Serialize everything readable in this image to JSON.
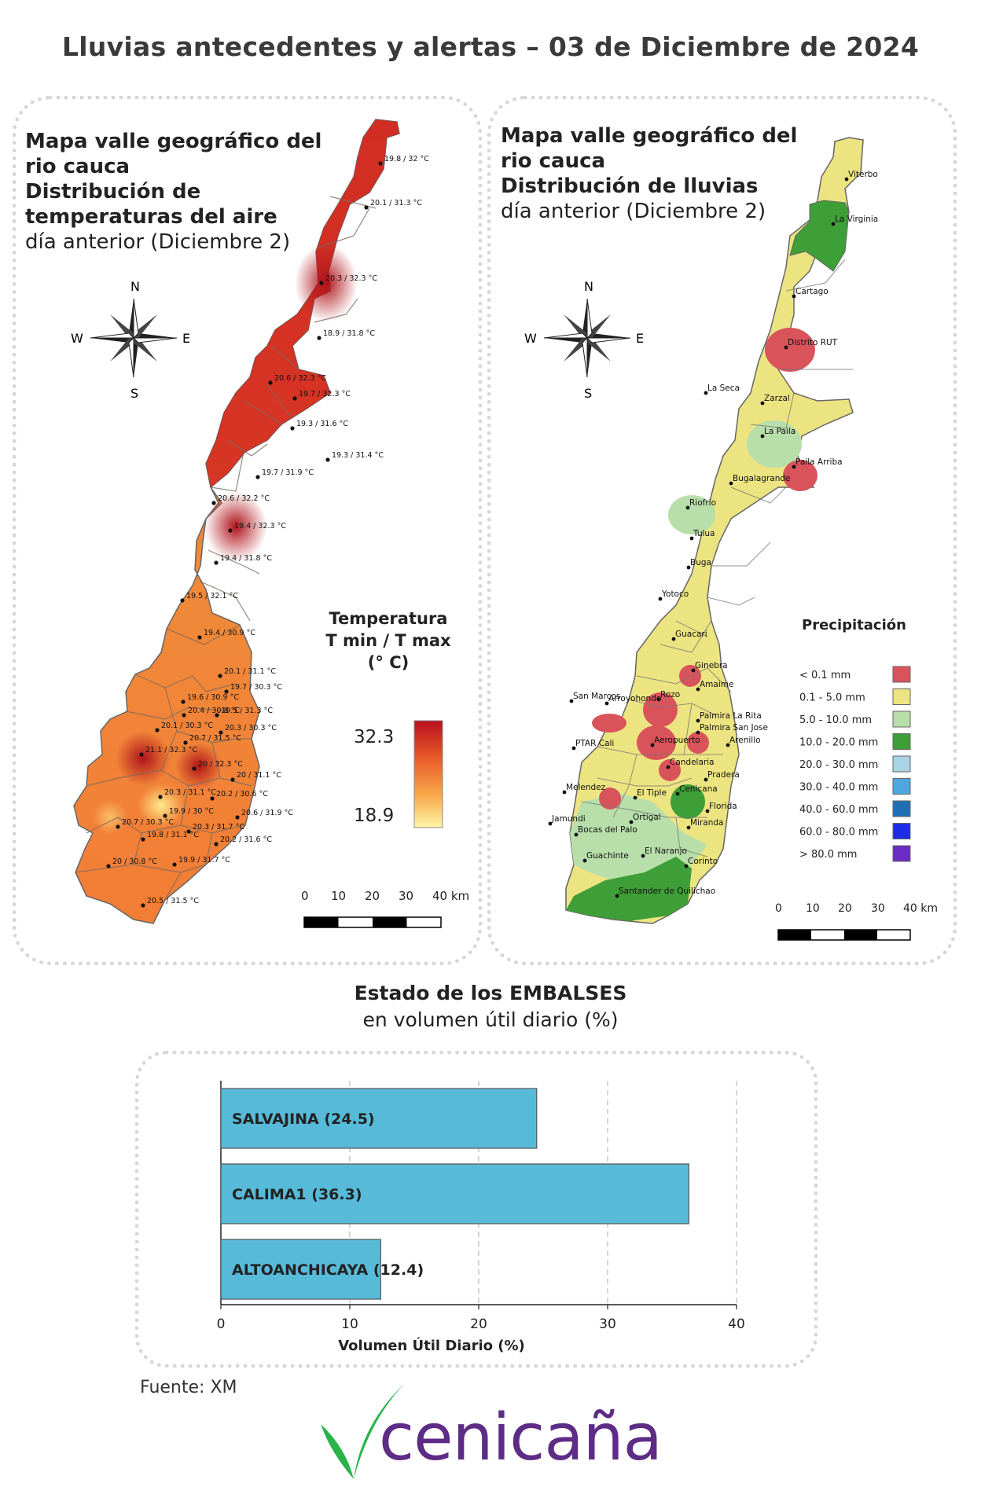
{
  "header": {
    "title": "Lluvias antecedentes y alertas – 03 de Diciembre de 2024"
  },
  "temperature_map": {
    "title_bold": [
      "Mapa valle geográfico del",
      "rio cauca",
      "Distribución de",
      "temperaturas del aire"
    ],
    "title_normal": "día anterior (Diciembre 2)",
    "compass": {
      "n": "N",
      "s": "S",
      "e": "E",
      "w": "W"
    },
    "legend": {
      "title_line1": "Temperatura",
      "title_line2": "T min / T max",
      "title_line3": "(° C)",
      "max": "32.3",
      "min": "18.9",
      "color_max": "#b80f1e",
      "color_min": "#fff6a8"
    },
    "scale": {
      "labels": [
        "0",
        "10",
        "20",
        "30",
        "40 km"
      ]
    },
    "stations": [
      {
        "label": "19.8 / 32 °C"
      },
      {
        "label": "20.1 / 31.3 °C"
      },
      {
        "label": "20.3 / 32.3 °C"
      },
      {
        "label": "18.9 / 31.8 °C"
      },
      {
        "label": "20.6 / 32.3 °C"
      },
      {
        "label": "19.7 / 32.3 °C"
      },
      {
        "label": "19.3 / 31.6 °C"
      },
      {
        "label": "19.3 / 31.4 °C"
      },
      {
        "label": "19.7 / 31.9 °C"
      },
      {
        "label": "20.6 / 32.2 °C"
      },
      {
        "label": "19.4 / 32.3 °C"
      },
      {
        "label": "19.4 / 31.8 °C"
      },
      {
        "label": "19.5 / 32.1 °C"
      },
      {
        "label": "19.4 / 30.9 °C"
      },
      {
        "label": "20.1 / 31.1 °C"
      },
      {
        "label": "19.7 / 30.3 °C"
      },
      {
        "label": "19.6 / 30.9 °C"
      },
      {
        "label": "20.4 / 30.8 °C"
      },
      {
        "label": "19.5 / 31.3 °C"
      },
      {
        "label": "20.1 / 30.3 °C"
      },
      {
        "label": "20.3 / 30.3 °C"
      },
      {
        "label": "21.1 / 32.3 °C"
      },
      {
        "label": "20.7 / 31.5 °C"
      },
      {
        "label": "20 / 32.3 °C"
      },
      {
        "label": "20 / 31.1 °C"
      },
      {
        "label": "20.3 / 31.1 °C"
      },
      {
        "label": "20.2 / 30.6 °C"
      },
      {
        "label": "19.9 / 30 °C"
      },
      {
        "label": "20.6 / 31.9 °C"
      },
      {
        "label": "20.7 / 30.3 °C"
      },
      {
        "label": "20.3 / 31.7 °C"
      },
      {
        "label": "19.8 / 31.1 °C"
      },
      {
        "label": "20.2 / 31.6 °C"
      },
      {
        "label": "20 / 30.8 °C"
      },
      {
        "label": "19.9 / 31.7 °C"
      },
      {
        "label": "20.5 / 31.5 °C"
      }
    ]
  },
  "rain_map": {
    "title_normal_1": [
      "Mapa valle geográfico del",
      "rio cauca"
    ],
    "title_bold": "Distribución de lluvias",
    "title_normal": "día anterior (Diciembre 2)",
    "compass": {
      "n": "N",
      "s": "S",
      "e": "E",
      "w": "W"
    },
    "legend": {
      "title": "Precipitación",
      "items": [
        {
          "label": "< 0.1 mm",
          "color": "#d9535b"
        },
        {
          "label": "0.1 - 5.0 mm",
          "color": "#ece480"
        },
        {
          "label": "5.0 - 10.0 mm",
          "color": "#b8deaa"
        },
        {
          "label": "10.0 - 20.0 mm",
          "color": "#3e9e37"
        },
        {
          "label": "20.0 - 30.0 mm",
          "color": "#a9d3e6"
        },
        {
          "label": "30.0 - 40.0 mm",
          "color": "#4fa6e0"
        },
        {
          "label": "40.0 - 60.0 mm",
          "color": "#1f6fb5"
        },
        {
          "label": "60.0 - 80.0 mm",
          "color": "#1e2ce6"
        },
        {
          "label": "> 80.0 mm",
          "color": "#6a2cc4"
        }
      ]
    },
    "scale": {
      "labels": [
        "0",
        "10",
        "20",
        "30",
        "40 km"
      ]
    },
    "places": [
      "Viterbo",
      "La Virginia",
      "Cartago",
      "Distrito RUT",
      "La Seca",
      "Zarzal",
      "La Paila",
      "Paila Arriba",
      "Bugalagrande",
      "Riofrio",
      "Tulua",
      "Buga",
      "Yotoco",
      "Guacari",
      "Ginebra",
      "San Marcos",
      "Rozo",
      "Amaime",
      "Palmira La Rita",
      "Arroyohondo",
      "Palmira San Jose",
      "PTAR Cali",
      "Aeropuerto",
      "Arenillo",
      "Candelaria",
      "Pradera",
      "Melendez",
      "El Tiple",
      "Cenicana",
      "Florida",
      "Jamundi",
      "Bocas del Palo",
      "Ortigal",
      "Miranda",
      "Guachinte",
      "El Naranjo",
      "Corinto",
      "Santander de Quilichao"
    ]
  },
  "reservoirs": {
    "title_bold": "Estado de los EMBALSES",
    "title_normal": "en volumen útil diario (%)",
    "chart_data": {
      "type": "bar",
      "orientation": "horizontal",
      "categories": [
        "SALVAJINA",
        "CALIMA1",
        "ALTOANCHICAYA"
      ],
      "values": [
        24.5,
        36.3,
        12.4
      ],
      "bar_labels": [
        "SALVAJINA (24.5)",
        "CALIMA1 (36.3)",
        "ALTOANCHICAYA (12.4)"
      ],
      "xlabel": "Volumen Útil Diario (%)",
      "xlim": [
        0,
        40
      ],
      "xticks": [
        "0",
        "10",
        "20",
        "30",
        "40"
      ],
      "grid": true,
      "bar_color": "#57bad9"
    }
  },
  "footer": {
    "source": "Fuente: XM",
    "logo_text": "cenicaña",
    "logo_color": "#5e2b86",
    "logo_leaf_color": "#2bb34a"
  }
}
